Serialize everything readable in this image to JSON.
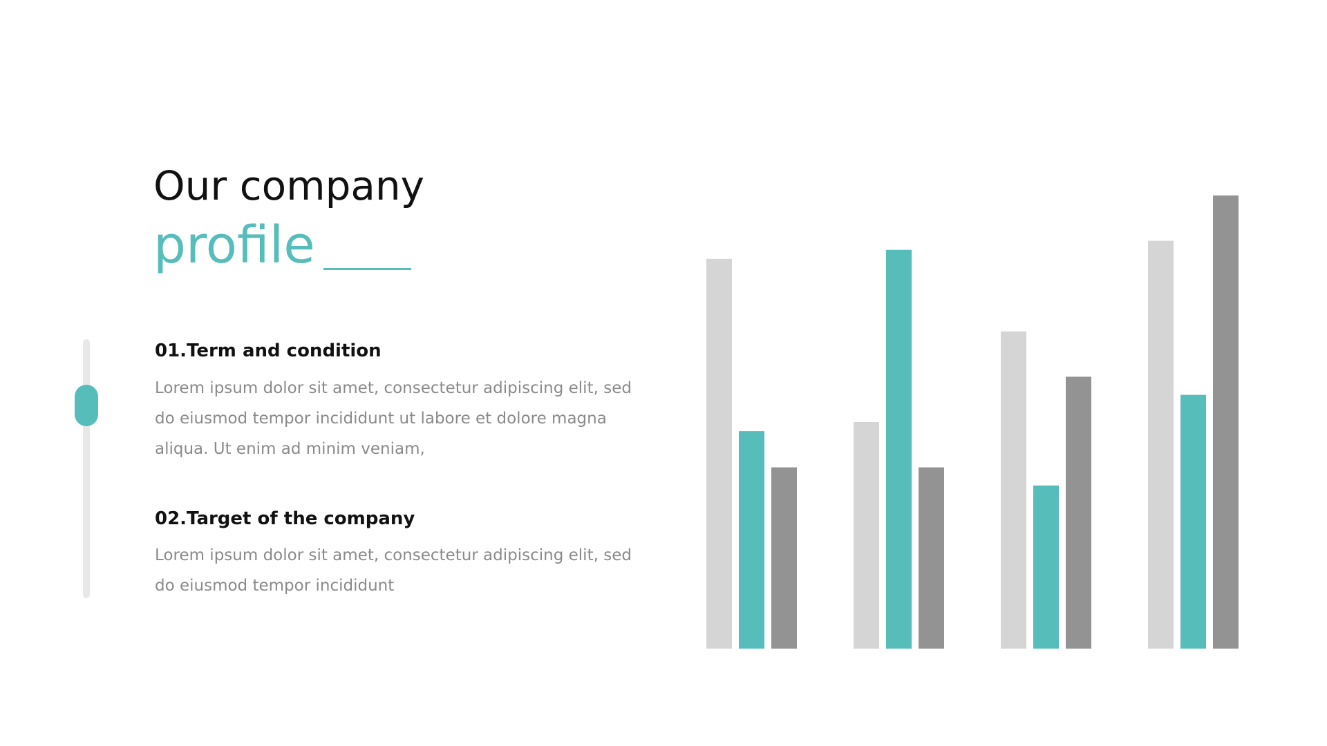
{
  "heading": {
    "line1": "Our company",
    "line2": "profile"
  },
  "items": [
    {
      "title": "01.Term and condition",
      "text": "Lorem ipsum dolor sit amet, consectetur adipiscing elit, sed do eiusmod tempor incididunt ut labore et dolore magna aliqua. Ut enim ad minim veniam,"
    },
    {
      "title": "02.Target of the company",
      "text": "Lorem ipsum dolor sit amet, consectetur adipiscing elit, sed do eiusmod tempor incididunt"
    }
  ],
  "chart_data": {
    "type": "bar",
    "categories": [
      null,
      null,
      null,
      null
    ],
    "series": [
      {
        "color": "#d5d5d5",
        "values": [
          86,
          50,
          70,
          90
        ]
      },
      {
        "color": "#57bdbb",
        "values": [
          48,
          88,
          36,
          56
        ]
      },
      {
        "color": "#939393",
        "values": [
          40,
          40,
          60,
          100
        ]
      }
    ],
    "ylim": [
      0,
      100
    ],
    "grid": false
  }
}
